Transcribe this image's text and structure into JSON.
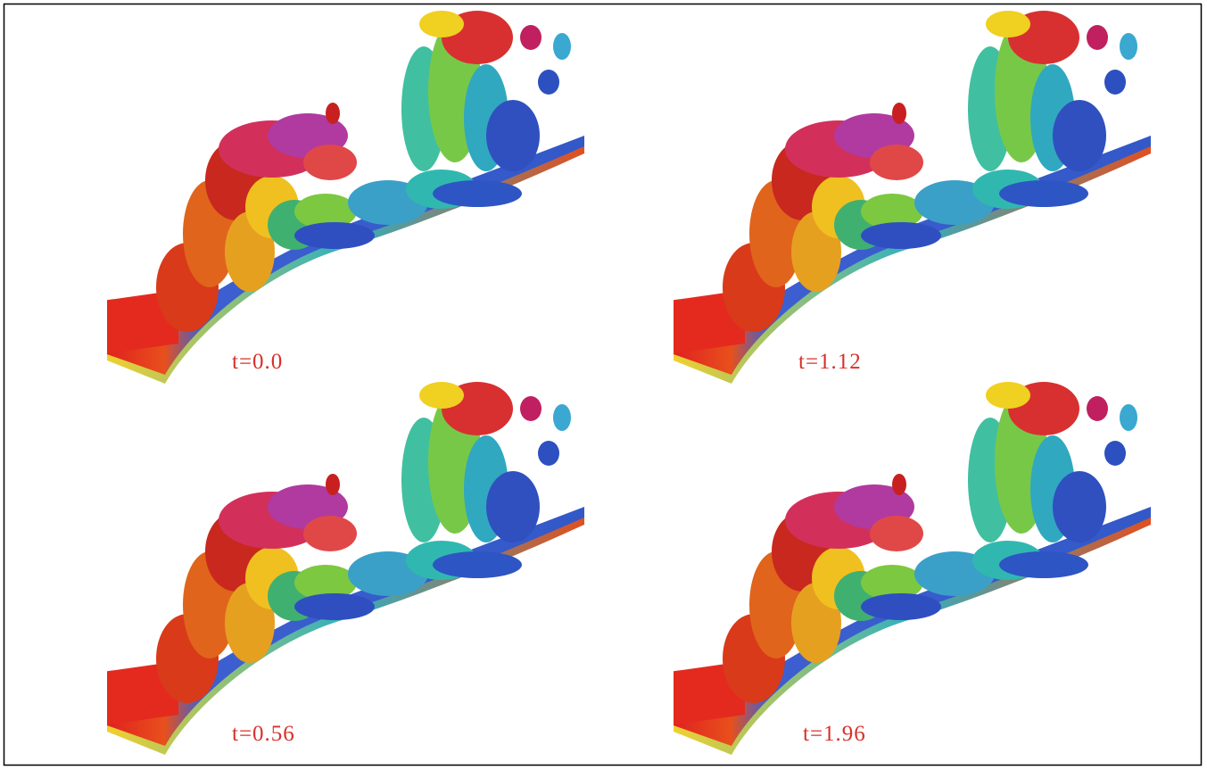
{
  "panels": [
    {
      "label": "t=0.0"
    },
    {
      "label": "t=1.12"
    },
    {
      "label": "t=0.56"
    },
    {
      "label": "t=1.96"
    }
  ]
}
